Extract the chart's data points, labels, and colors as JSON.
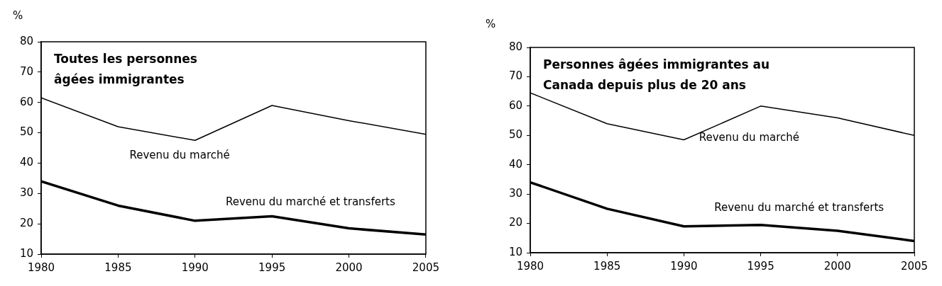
{
  "chart_data": [
    {
      "type": "line",
      "title": "Toutes les personnes âgées immigrantes",
      "ylabel": "%",
      "x": [
        1980,
        1985,
        1990,
        1995,
        2000,
        2005
      ],
      "xlim": [
        1980,
        2005
      ],
      "xticks": [
        1980,
        1985,
        1990,
        1995,
        2000,
        2005
      ],
      "ylim": [
        10,
        80
      ],
      "yticks": [
        10,
        20,
        30,
        40,
        50,
        60,
        70,
        80
      ],
      "legend": false,
      "grid": false,
      "marker": "none",
      "series": [
        {
          "name": "Revenu du marché",
          "color": "#000000",
          "values": [
            61.5,
            52,
            47.5,
            59,
            54,
            49.5
          ]
        },
        {
          "name": "Revenu du marché et transferts",
          "color": "#000000",
          "values": [
            34,
            26,
            21,
            22.5,
            18.5,
            16.5
          ]
        }
      ]
    },
    {
      "type": "line",
      "title": "Personnes âgées immigrantes au Canada depuis plus de 20 ans",
      "ylabel": "%",
      "x": [
        1980,
        1985,
        1990,
        1995,
        2000,
        2005
      ],
      "xlim": [
        1980,
        2005
      ],
      "xticks": [
        1980,
        1985,
        1990,
        1995,
        2000,
        2005
      ],
      "ylim": [
        10,
        80
      ],
      "yticks": [
        10,
        20,
        30,
        40,
        50,
        60,
        70,
        80
      ],
      "legend": false,
      "grid": false,
      "marker": "none",
      "series": [
        {
          "name": "Revenu du marché",
          "color": "#000000",
          "values": [
            64.5,
            54,
            48.5,
            60,
            56,
            50
          ]
        },
        {
          "name": "Revenu du marché et transferts",
          "color": "#000000",
          "values": [
            34,
            25,
            19,
            19.5,
            17.5,
            14
          ]
        }
      ]
    }
  ]
}
